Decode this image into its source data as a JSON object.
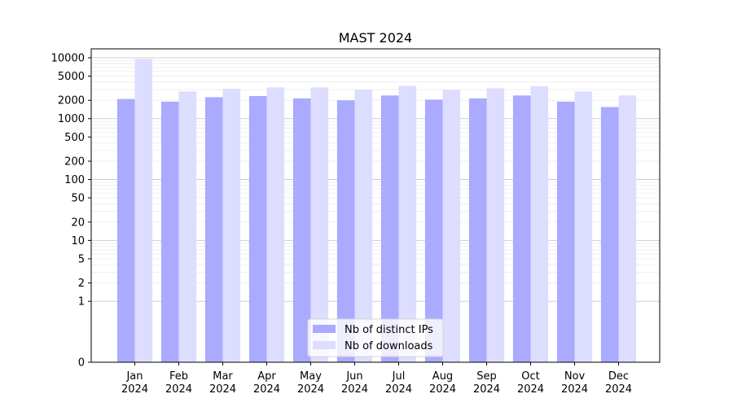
{
  "chart_data": {
    "type": "bar",
    "title": "MAST 2024",
    "xlabel": "",
    "ylabel": "",
    "yscale": "symlog",
    "ylim": [
      0,
      14000
    ],
    "yticks": [
      0,
      1,
      2,
      5,
      10,
      20,
      50,
      100,
      200,
      500,
      1000,
      2000,
      5000,
      10000
    ],
    "grid": true,
    "legend_position": "bottom-center",
    "categories": [
      "Jan\n2024",
      "Feb\n2024",
      "Mar\n2024",
      "Apr\n2024",
      "May\n2024",
      "Jun\n2024",
      "Jul\n2024",
      "Aug\n2024",
      "Sep\n2024",
      "Oct\n2024",
      "Nov\n2024",
      "Dec\n2024"
    ],
    "series": [
      {
        "name": "Nb of distinct IPs",
        "color": "#aaaaff",
        "values": [
          2100,
          1900,
          2250,
          2350,
          2150,
          2000,
          2400,
          2050,
          2150,
          2400,
          1900,
          1550
        ]
      },
      {
        "name": "Nb of downloads",
        "color": "#ddddff",
        "values": [
          9500,
          2800,
          3100,
          3250,
          3250,
          3000,
          3450,
          2950,
          3150,
          3400,
          2800,
          2400
        ]
      }
    ]
  }
}
